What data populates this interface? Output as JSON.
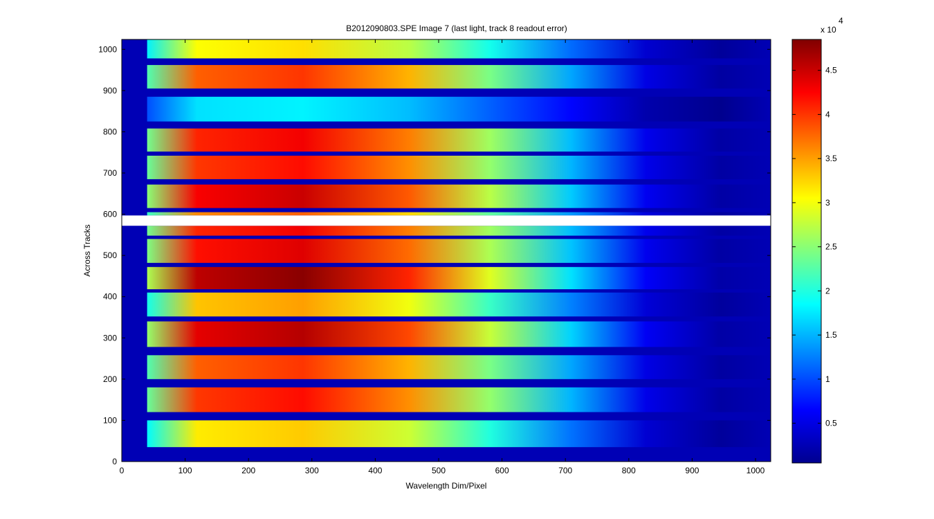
{
  "chart_data": {
    "type": "heatmap",
    "title": "B2012090803.SPE  Image 7 (last light, track 8 readout error)",
    "xlabel": "Wavelength Dim/Pixel",
    "ylabel": "Across Tracks",
    "xlim": [
      0,
      1024
    ],
    "ylim": [
      0,
      1024
    ],
    "x_ticks": [
      0,
      100,
      200,
      300,
      400,
      500,
      600,
      700,
      800,
      900,
      1000
    ],
    "y_ticks": [
      0,
      100,
      200,
      300,
      400,
      500,
      600,
      700,
      800,
      900,
      1000
    ],
    "grid": false,
    "colormap": "jet",
    "colorbar": {
      "range": [
        0.05,
        4.85
      ],
      "ticks": [
        0.5,
        1,
        1.5,
        2,
        2.5,
        3,
        3.5,
        4,
        4.5
      ],
      "tick_labels": [
        "0.5",
        "1",
        "1.5",
        "2",
        "2.5",
        "3",
        "3.5",
        "4",
        "4.5"
      ],
      "multiplier_label": "x 10",
      "multiplier_exponent": "4"
    },
    "signal_onset_pixel": 40,
    "readout_error_band": {
      "y_range": [
        572,
        597
      ],
      "value": "missing (white)"
    },
    "tracks": [
      {
        "y_range": [
          35,
          100
        ],
        "peak": 3.3
      },
      {
        "y_range": [
          120,
          180
        ],
        "peak": 4.2
      },
      {
        "y_range": [
          200,
          258
        ],
        "peak": 4.0
      },
      {
        "y_range": [
          278,
          340
        ],
        "peak": 4.6
      },
      {
        "y_range": [
          352,
          410
        ],
        "peak": 3.5
      },
      {
        "y_range": [
          418,
          472
        ],
        "peak": 4.8
      },
      {
        "y_range": [
          482,
          540
        ],
        "peak": 4.4
      },
      {
        "y_range": [
          548,
          572
        ],
        "peak": 4.3
      },
      {
        "y_range": [
          597,
          605
        ],
        "peak": 3.8
      },
      {
        "y_range": [
          615,
          672
        ],
        "peak": 4.5
      },
      {
        "y_range": [
          685,
          742
        ],
        "peak": 4.2
      },
      {
        "y_range": [
          752,
          808
        ],
        "peak": 4.3
      },
      {
        "y_range": [
          825,
          885
        ],
        "peak": 1.8
      },
      {
        "y_range": [
          905,
          962
        ],
        "peak": 4.0
      },
      {
        "y_range": [
          978,
          1024
        ],
        "peak": 3.2
      }
    ]
  }
}
